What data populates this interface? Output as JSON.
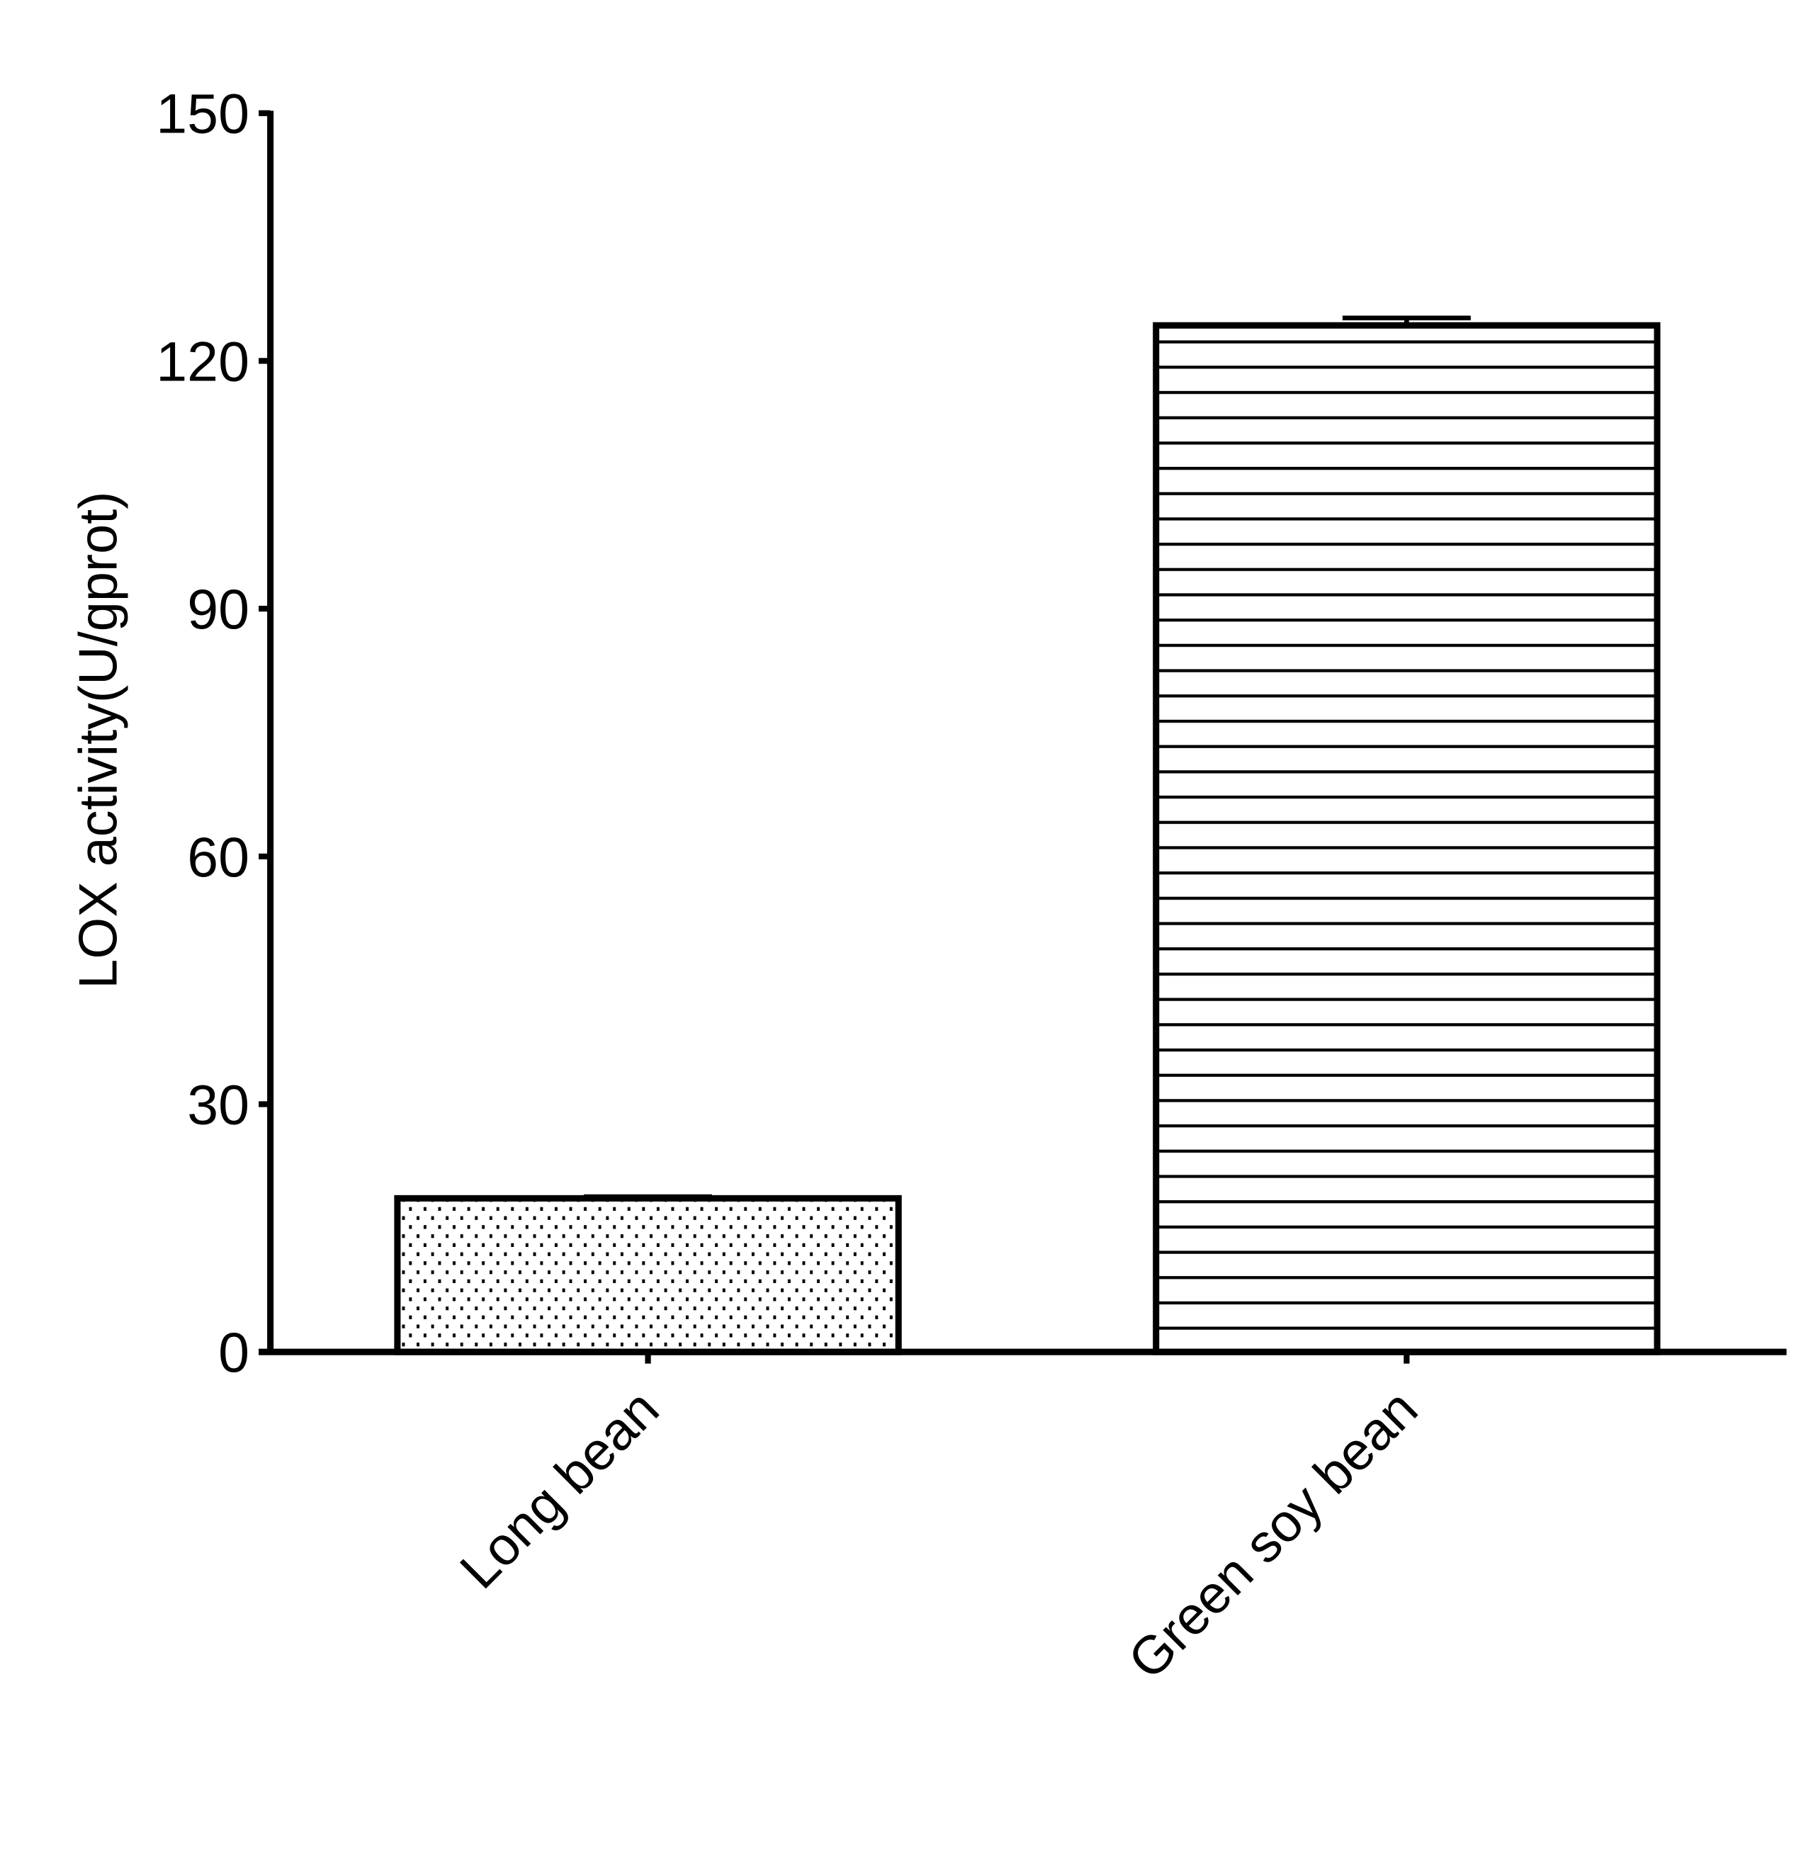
{
  "chart_data": {
    "type": "bar",
    "title": "",
    "xlabel": "",
    "ylabel": "LOX activity(U/gprot)",
    "ylim": [
      0,
      150
    ],
    "yticks": [
      "0",
      "30",
      "60",
      "90",
      "120",
      "150"
    ],
    "categories": [
      "Long bean",
      "Green soy bean"
    ],
    "values": [
      18.6,
      124.3
    ],
    "error": [
      0.2,
      0.9
    ],
    "patterns": [
      "dots",
      "horizontal-lines"
    ],
    "grid": false,
    "colors": {
      "stroke": "#000000",
      "fill": "#ffffff"
    }
  }
}
